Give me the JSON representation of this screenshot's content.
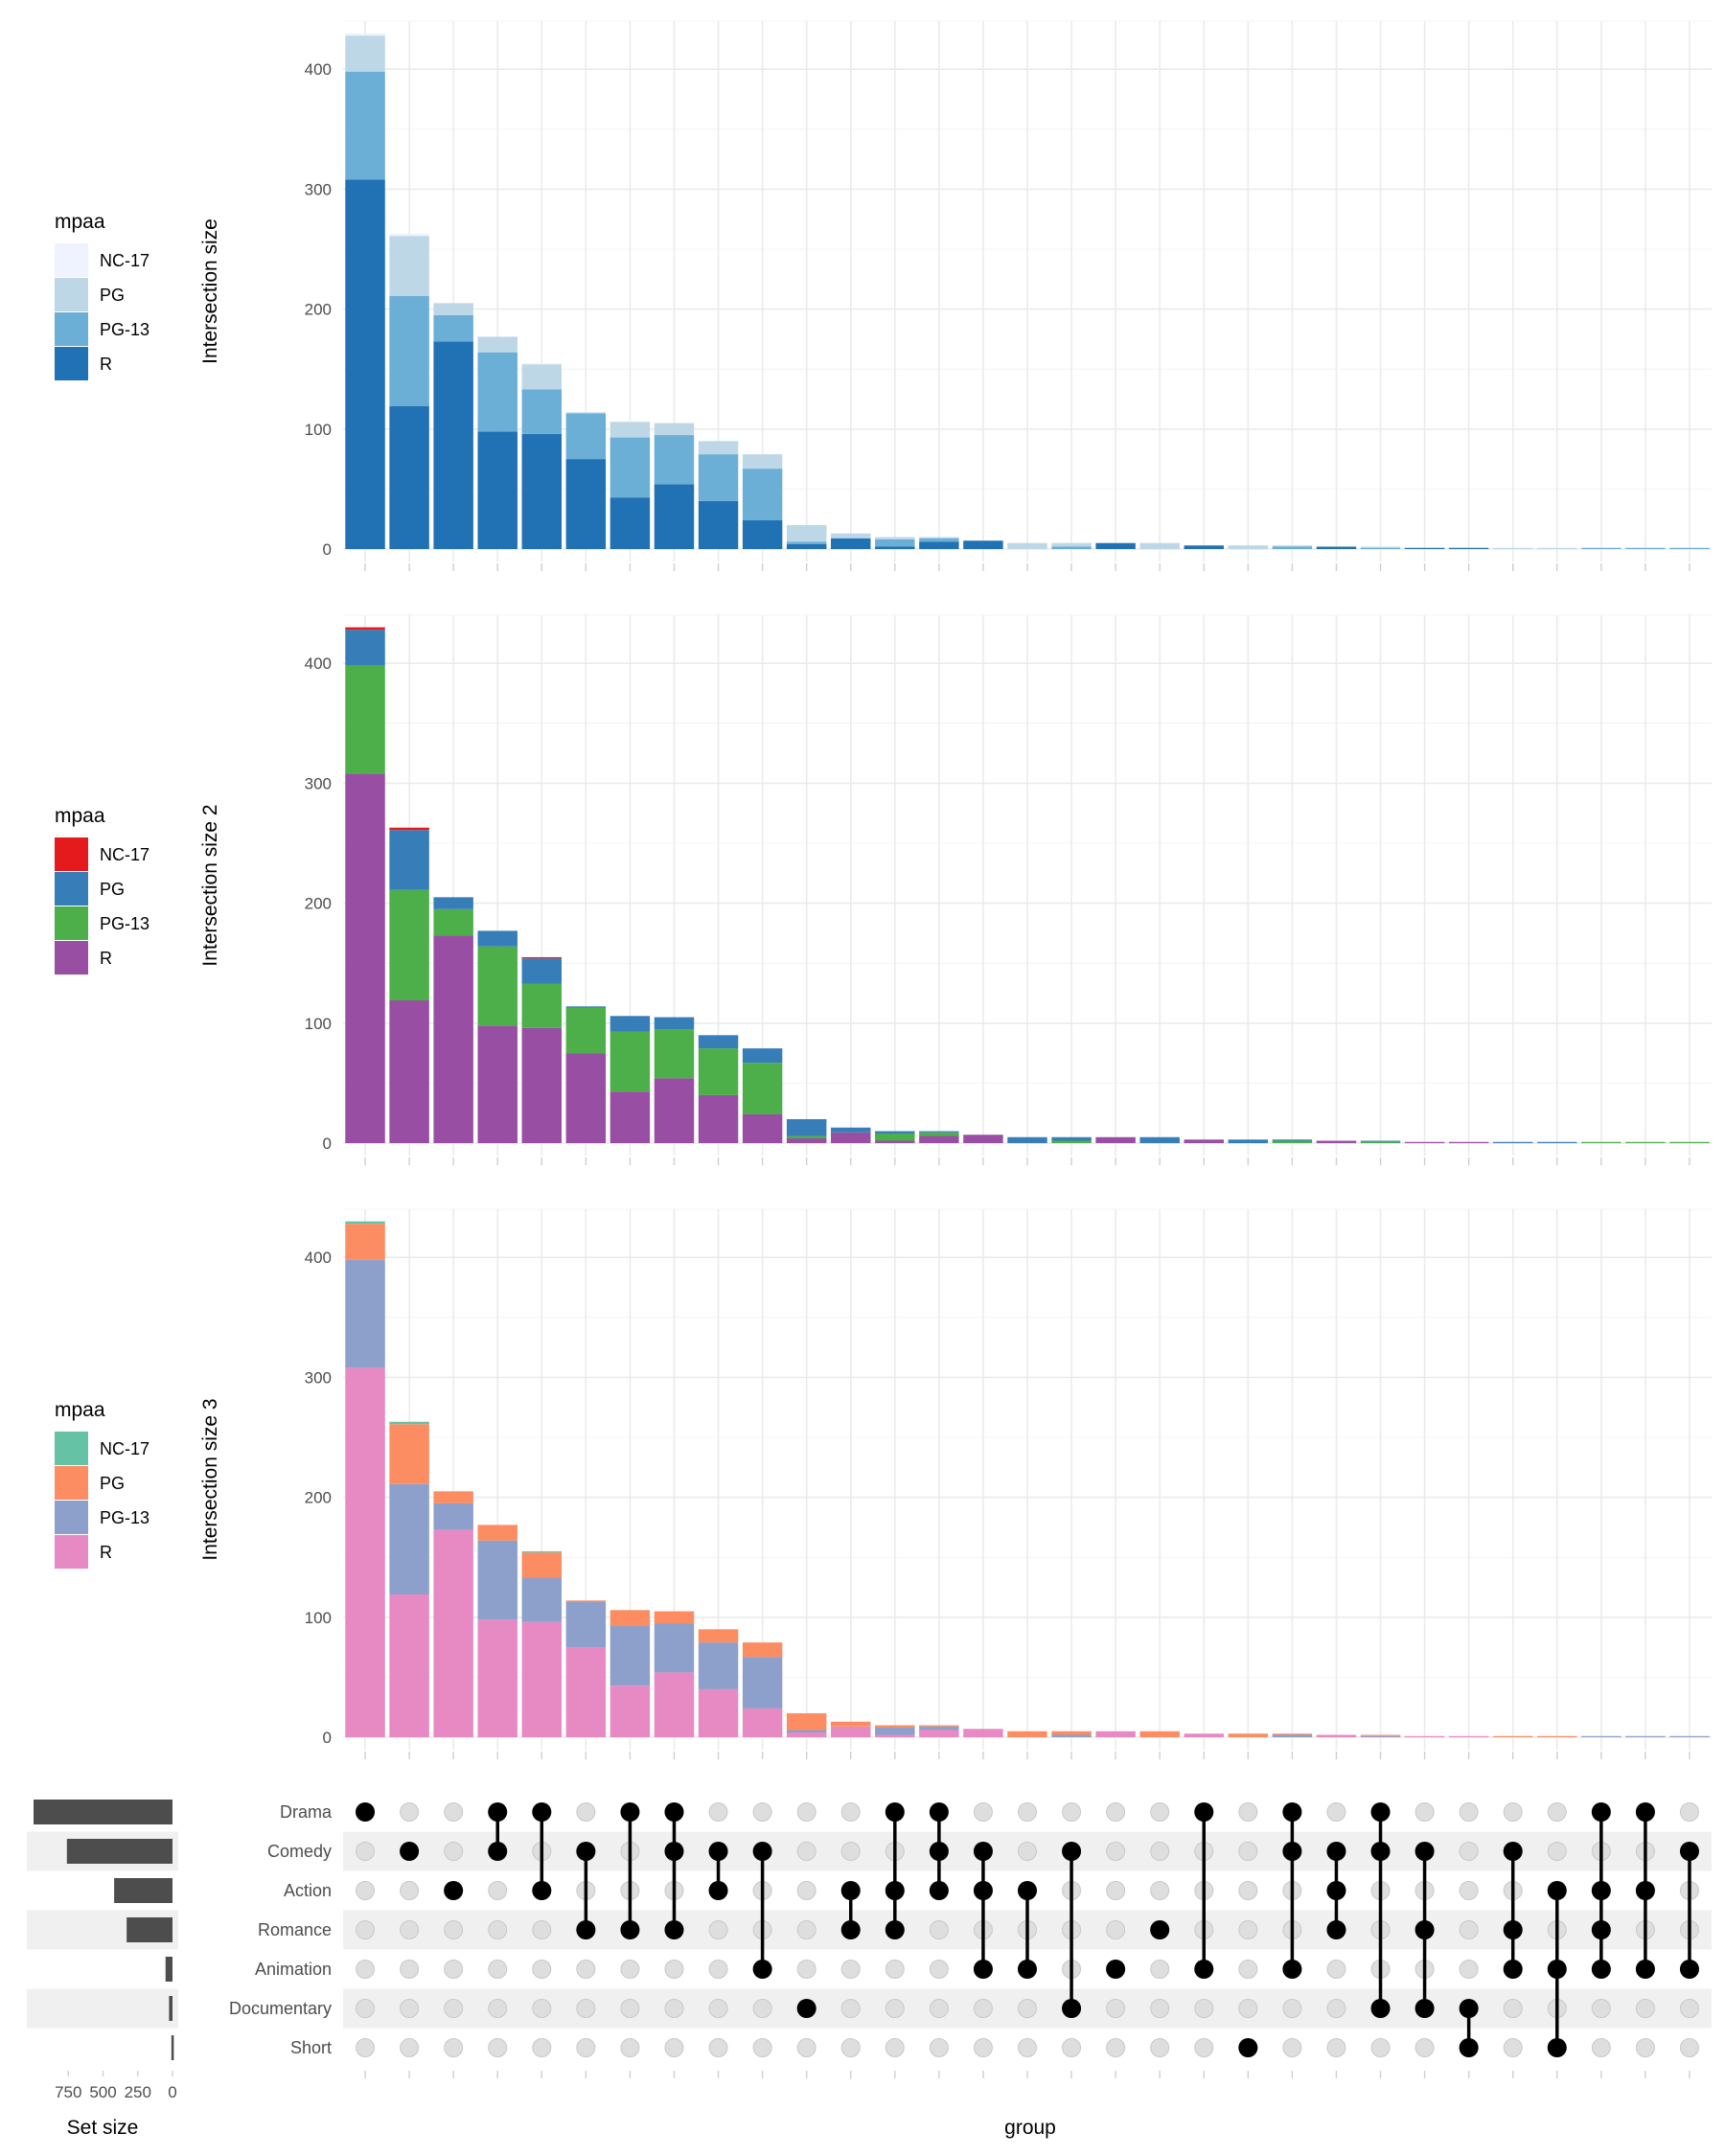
{
  "panels": [
    {
      "ylabel": "Intersection size",
      "legend": {
        "title": "mpaa",
        "entries": [
          {
            "label": "NC-17",
            "color": "#eff3ff"
          },
          {
            "label": "PG",
            "color": "#bdd7e7"
          },
          {
            "label": "PG-13",
            "color": "#6baed6"
          },
          {
            "label": "R",
            "color": "#2171b5"
          }
        ]
      }
    },
    {
      "ylabel": "Intersection size 2",
      "legend": {
        "title": "mpaa",
        "entries": [
          {
            "label": "NC-17",
            "color": "#e41a1c"
          },
          {
            "label": "PG",
            "color": "#377eb8"
          },
          {
            "label": "PG-13",
            "color": "#4daf4a"
          },
          {
            "label": "R",
            "color": "#984ea3"
          }
        ]
      }
    },
    {
      "ylabel": "Intersection size 3",
      "legend": {
        "title": "mpaa",
        "entries": [
          {
            "label": "NC-17",
            "color": "#66c2a5"
          },
          {
            "label": "PG",
            "color": "#fc8d62"
          },
          {
            "label": "PG-13",
            "color": "#8da0cb"
          },
          {
            "label": "R",
            "color": "#e78ac3"
          }
        ]
      }
    }
  ],
  "chart_data": {
    "type": "bar",
    "stacked": true,
    "ylim": [
      0,
      450
    ],
    "yticks": [
      0,
      100,
      200,
      300,
      400
    ],
    "series_names": [
      "NC-17",
      "PG",
      "PG-13",
      "R"
    ],
    "intersections": [
      {
        "NC-17": 2,
        "PG": 30,
        "PG-13": 90,
        "R": 308
      },
      {
        "NC-17": 2,
        "PG": 50,
        "PG-13": 92,
        "R": 119
      },
      {
        "NC-17": 0,
        "PG": 10,
        "PG-13": 22,
        "R": 173
      },
      {
        "NC-17": 0,
        "PG": 13,
        "PG-13": 66,
        "R": 98
      },
      {
        "NC-17": 1,
        "PG": 21,
        "PG-13": 37,
        "R": 96
      },
      {
        "NC-17": 0,
        "PG": 1,
        "PG-13": 38,
        "R": 75
      },
      {
        "NC-17": 0,
        "PG": 13,
        "PG-13": 50,
        "R": 43
      },
      {
        "NC-17": 0,
        "PG": 10,
        "PG-13": 41,
        "R": 54
      },
      {
        "NC-17": 0,
        "PG": 11,
        "PG-13": 39,
        "R": 40
      },
      {
        "NC-17": 0,
        "PG": 12,
        "PG-13": 43,
        "R": 24
      },
      {
        "NC-17": 0,
        "PG": 14,
        "PG-13": 2,
        "R": 4
      },
      {
        "NC-17": 0,
        "PG": 4,
        "PG-13": 0,
        "R": 9
      },
      {
        "NC-17": 0,
        "PG": 2,
        "PG-13": 6,
        "R": 2
      },
      {
        "NC-17": 0,
        "PG": 1,
        "PG-13": 3,
        "R": 6
      },
      {
        "NC-17": 0,
        "PG": 0,
        "PG-13": 0,
        "R": 7
      },
      {
        "NC-17": 0,
        "PG": 5,
        "PG-13": 0,
        "R": 0
      },
      {
        "NC-17": 0,
        "PG": 3,
        "PG-13": 2,
        "R": 0
      },
      {
        "NC-17": 0,
        "PG": 0,
        "PG-13": 0,
        "R": 5
      },
      {
        "NC-17": 0,
        "PG": 5,
        "PG-13": 0,
        "R": 0
      },
      {
        "NC-17": 0,
        "PG": 0,
        "PG-13": 0,
        "R": 3
      },
      {
        "NC-17": 0,
        "PG": 3,
        "PG-13": 0,
        "R": 0
      },
      {
        "NC-17": 0,
        "PG": 1,
        "PG-13": 2,
        "R": 0
      },
      {
        "NC-17": 0,
        "PG": 0,
        "PG-13": 0,
        "R": 2
      },
      {
        "NC-17": 0,
        "PG": 1,
        "PG-13": 1,
        "R": 0
      },
      {
        "NC-17": 0,
        "PG": 0,
        "PG-13": 0,
        "R": 1
      },
      {
        "NC-17": 0,
        "PG": 0,
        "PG-13": 0,
        "R": 1
      },
      {
        "NC-17": 0,
        "PG": 1,
        "PG-13": 0,
        "R": 0
      },
      {
        "NC-17": 0,
        "PG": 1,
        "PG-13": 0,
        "R": 0
      },
      {
        "NC-17": 0,
        "PG": 0,
        "PG-13": 1,
        "R": 0
      },
      {
        "NC-17": 0,
        "PG": 0,
        "PG-13": 1,
        "R": 0
      },
      {
        "NC-17": 0,
        "PG": 0,
        "PG-13": 1,
        "R": 0
      }
    ],
    "sets": [
      "Drama",
      "Comedy",
      "Action",
      "Romance",
      "Animation",
      "Documentary",
      "Short"
    ],
    "set_sizes": [
      1000,
      760,
      420,
      330,
      50,
      25,
      8
    ],
    "set_size_xlim": [
      1000,
      0
    ],
    "set_size_ticks": [
      750,
      500,
      250,
      0
    ],
    "set_size_label": "Set size",
    "xlabel": "group",
    "membership": [
      [
        0
      ],
      [
        1
      ],
      [
        2
      ],
      [
        0,
        1
      ],
      [
        0,
        2
      ],
      [
        1,
        3
      ],
      [
        0,
        3
      ],
      [
        0,
        1,
        3
      ],
      [
        1,
        2
      ],
      [
        1,
        4
      ],
      [
        5
      ],
      [
        2,
        3
      ],
      [
        0,
        2,
        3
      ],
      [
        0,
        1,
        2
      ],
      [
        1,
        2,
        4
      ],
      [
        2,
        4
      ],
      [
        1,
        5
      ],
      [
        4
      ],
      [
        3
      ],
      [
        0,
        4
      ],
      [
        6
      ],
      [
        0,
        1,
        4
      ],
      [
        1,
        2,
        3
      ],
      [
        0,
        1,
        5
      ],
      [
        1,
        3,
        5
      ],
      [
        5,
        6
      ],
      [
        1,
        3,
        4
      ],
      [
        2,
        4,
        6
      ],
      [
        0,
        2,
        3,
        4
      ],
      [
        0,
        2,
        4
      ],
      [
        1,
        4
      ]
    ]
  }
}
